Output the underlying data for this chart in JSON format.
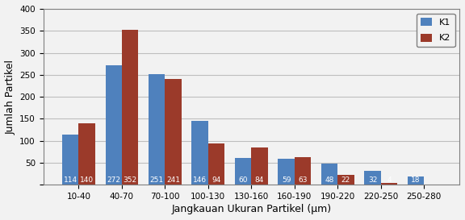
{
  "categories": [
    "10-40",
    "40-70",
    "70-100",
    "100-130",
    "130-160",
    "160-190",
    "190-220",
    "220-250",
    "250-280"
  ],
  "K1": [
    114,
    272,
    251,
    146,
    60,
    59,
    48,
    32,
    18
  ],
  "K2": [
    140,
    352,
    241,
    94,
    84,
    63,
    22,
    4,
    0
  ],
  "color_K1": "#4F81BD",
  "color_K2": "#9B3A2A",
  "xlabel": "Jangkauan Ukuran Partikel (μm)",
  "ylabel": "Jumlah Partikel",
  "ylim": [
    0,
    400
  ],
  "yticks": [
    0,
    50,
    100,
    150,
    200,
    250,
    300,
    350,
    400
  ],
  "legend_labels": [
    "K1",
    "K2"
  ],
  "bar_width": 0.38,
  "label_fontsize": 6.5,
  "axis_label_fontsize": 9,
  "tick_fontsize": 7.5,
  "legend_fontsize": 8,
  "bg_color": "#F2F2F2",
  "plot_bg_color": "#F2F2F2"
}
